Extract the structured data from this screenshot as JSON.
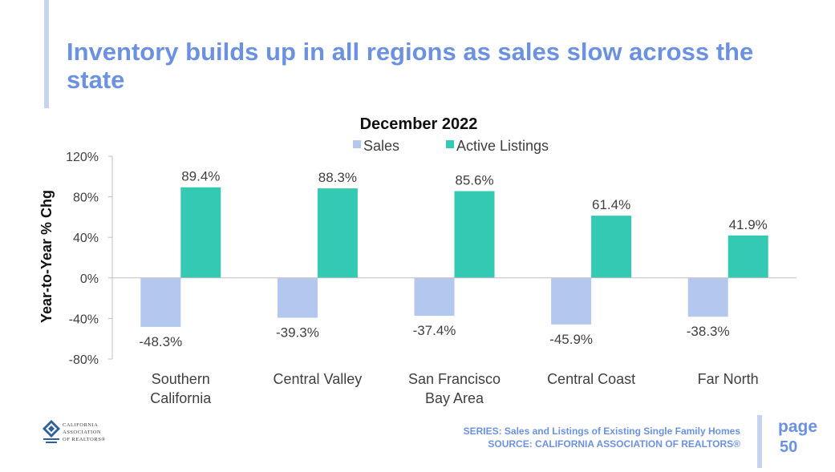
{
  "slide": {
    "title": "Inventory builds up in all regions as sales slow across the state",
    "accent_color": "#6b91e0",
    "bar_color": "#c5d3ef"
  },
  "chart_data": {
    "type": "bar",
    "title": "December 2022",
    "ylabel": "Year-to-Year % Chg",
    "xlabel": "",
    "ylim": [
      -80,
      120
    ],
    "yticks": [
      120,
      80,
      40,
      0,
      -40,
      -80
    ],
    "ytick_labels": [
      "120%",
      "80%",
      "40%",
      "0%",
      "-40%",
      "-80%"
    ],
    "legend_position": "top",
    "categories": [
      [
        "Southern",
        "California"
      ],
      [
        "Central Valley"
      ],
      [
        "San Francisco",
        "Bay Area"
      ],
      [
        "Central Coast"
      ],
      [
        "Far North"
      ]
    ],
    "series": [
      {
        "name": "Sales",
        "color": "#b4c7ee",
        "values": [
          -48.3,
          -39.3,
          -37.4,
          -45.9,
          -38.3
        ],
        "labels": [
          "-48.3%",
          "-39.3%",
          "-37.4%",
          "-45.9%",
          "-38.3%"
        ]
      },
      {
        "name": "Active Listings",
        "color": "#33c9b3",
        "values": [
          89.4,
          88.3,
          85.6,
          61.4,
          41.9
        ],
        "labels": [
          "89.4%",
          "88.3%",
          "85.6%",
          "61.4%",
          "41.9%"
        ]
      }
    ]
  },
  "footer": {
    "series_line": "SERIES: Sales and Listings of Existing Single Family Homes",
    "source_line": "SOURCE: CALIFORNIA ASSOCIATION OF REALTORS®",
    "page_label": "page",
    "page_number": "50",
    "logo_text": [
      "CALIFORNIA",
      "ASSOCIATION",
      "OF REALTORS®"
    ]
  }
}
